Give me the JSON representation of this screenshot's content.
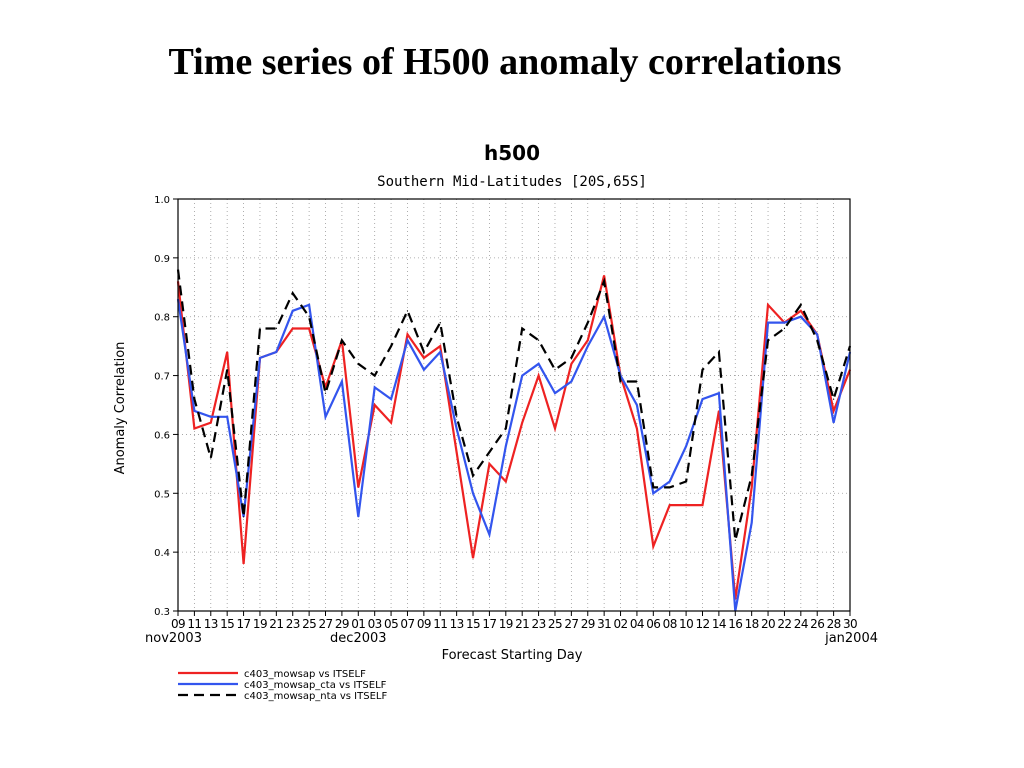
{
  "slide_title": "Time series of H500 anomaly correlations",
  "chart_data": {
    "type": "line",
    "title": "h500",
    "subtitle": "Southern Mid-Latitudes [20S,65S]",
    "xlabel": "Forecast Starting Day",
    "ylabel": "Anomaly Correlation",
    "ylim": [
      0.3,
      1.0
    ],
    "yticks": [
      "0.3",
      "0.4",
      "0.5",
      "0.6",
      "0.7",
      "0.8",
      "0.9",
      "1.0"
    ],
    "grid": true,
    "legend_position": "bottom-left",
    "x_tick_labels": [
      "09",
      "11",
      "13",
      "15",
      "17",
      "19",
      "21",
      "23",
      "25",
      "27",
      "29",
      "01",
      "03",
      "05",
      "07",
      "09",
      "11",
      "13",
      "15",
      "17",
      "19",
      "21",
      "23",
      "25",
      "27",
      "29",
      "31",
      "02",
      "04",
      "06",
      "08",
      "10",
      "12",
      "14",
      "16",
      "18",
      "20",
      "22",
      "24",
      "26",
      "28",
      "30"
    ],
    "x_month_labels": [
      {
        "label": "nov2003",
        "at": "09"
      },
      {
        "label": "dec2003",
        "at": "01"
      },
      {
        "label": "jan2004",
        "at": "30"
      }
    ],
    "x_dates": [
      "2003-11-09",
      "2003-11-11",
      "2003-11-13",
      "2003-11-15",
      "2003-11-17",
      "2003-11-19",
      "2003-11-21",
      "2003-11-23",
      "2003-11-25",
      "2003-11-27",
      "2003-11-29",
      "2003-12-01",
      "2003-12-03",
      "2003-12-05",
      "2003-12-07",
      "2003-12-09",
      "2003-12-11",
      "2003-12-13",
      "2003-12-15",
      "2003-12-17",
      "2003-12-19",
      "2003-12-21",
      "2003-12-23",
      "2003-12-25",
      "2003-12-27",
      "2003-12-29",
      "2003-12-31",
      "2004-01-02",
      "2004-01-04",
      "2004-01-06",
      "2004-01-08",
      "2004-01-10",
      "2004-01-12",
      "2004-01-14",
      "2004-01-16",
      "2004-01-18",
      "2004-01-20",
      "2004-01-22",
      "2004-01-24",
      "2004-01-26",
      "2004-01-28",
      "2004-01-30"
    ],
    "series": [
      {
        "name": "c403_mowsap vs ITSELF",
        "color": "#ee2222",
        "style": "solid",
        "values": [
          0.86,
          0.61,
          0.62,
          0.74,
          0.38,
          0.73,
          0.74,
          0.78,
          0.78,
          0.68,
          0.76,
          0.51,
          0.65,
          0.62,
          0.77,
          0.73,
          0.75,
          0.57,
          0.39,
          0.55,
          0.52,
          0.62,
          0.7,
          0.61,
          0.72,
          0.76,
          0.87,
          0.7,
          0.61,
          0.41,
          0.48,
          0.48,
          0.48,
          0.64,
          0.32,
          0.51,
          0.82,
          0.79,
          0.81,
          0.77,
          0.64,
          0.71
        ]
      },
      {
        "name": "c403_mowsap_cta vs ITSELF",
        "color": "#3355ee",
        "style": "solid",
        "values": [
          0.83,
          0.64,
          0.63,
          0.63,
          0.46,
          0.73,
          0.74,
          0.81,
          0.82,
          0.63,
          0.69,
          0.46,
          0.68,
          0.66,
          0.76,
          0.71,
          0.74,
          0.61,
          0.5,
          0.43,
          0.58,
          0.7,
          0.72,
          0.67,
          0.69,
          0.75,
          0.8,
          0.7,
          0.65,
          0.5,
          0.52,
          0.58,
          0.66,
          0.67,
          0.3,
          0.45,
          0.79,
          0.79,
          0.8,
          0.77,
          0.62,
          0.74
        ]
      },
      {
        "name": "c403_mowsap_nta vs ITSELF",
        "color": "#000000",
        "style": "dashed",
        "values": [
          0.88,
          0.66,
          0.56,
          0.71,
          0.46,
          0.78,
          0.78,
          0.84,
          0.8,
          0.67,
          0.76,
          0.72,
          0.7,
          0.75,
          0.81,
          0.74,
          0.79,
          0.63,
          0.53,
          0.57,
          0.61,
          0.78,
          0.76,
          0.71,
          0.73,
          0.79,
          0.86,
          0.69,
          0.69,
          0.51,
          0.51,
          0.52,
          0.71,
          0.74,
          0.42,
          0.53,
          0.76,
          0.78,
          0.82,
          0.76,
          0.66,
          0.75
        ]
      }
    ]
  }
}
